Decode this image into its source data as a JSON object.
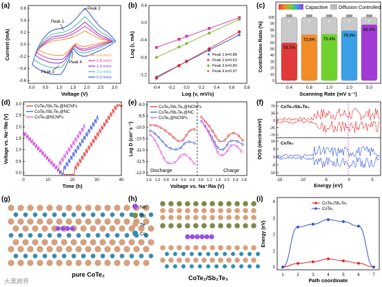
{
  "watermark": "大黑跨界",
  "panels": {
    "a": {
      "label": "(a)",
      "xlabel": "Voltage (V)",
      "ylabel": "Current (mA)",
      "xticks": [
        "0.0",
        "0.5",
        "1.0",
        "1.5",
        "2.0",
        "2.5",
        "3.0"
      ],
      "yticks": [
        "0.6",
        "0.4",
        "0.2",
        "0.0",
        "-0.2",
        "-0.4",
        "-0.6"
      ],
      "peaks": [
        "Peak 1",
        "Peak 2",
        "Peak 3",
        "Peak 4"
      ],
      "legend": [
        "0.4 mV/s",
        "0.8 mV/s",
        "1.0 mV/s",
        "2.0 mV/s",
        "5.0 mV/s"
      ]
    },
    "b": {
      "label": "(b)",
      "xlabel": "Log (v, mV/s)",
      "ylabel": "Log (i, mA)",
      "xticks": [
        "-0.4",
        "-0.2",
        "0.0",
        "0.2",
        "0.4",
        "0.6",
        "0.8"
      ],
      "yticks": [
        "0.4",
        "0.0",
        "-0.4",
        "-0.8",
        "-1.2"
      ],
      "legend": [
        "Peak 1 b=0.88",
        "Peak 2 b=0.63",
        "Peak 3 b=0.80",
        "Peak 4 b=0.97"
      ]
    },
    "c": {
      "label": "(c)",
      "legend_capacitive": "Capacitive",
      "legend_diffusion": "Diffusion Controlled",
      "xlabel": "Scanning Rate (mV s⁻¹)",
      "ylabel": "Contribution Ratio (%)",
      "categories": [
        "0.4",
        "0.8",
        "1.0",
        "2.0",
        "5.0"
      ],
      "percents": [
        "59.7%",
        "72.5%",
        "73.4%",
        "79.0%",
        "88.3%"
      ],
      "yticks": [
        "100",
        "90",
        "80",
        "70",
        "60",
        "50",
        "40",
        "30",
        "20",
        "10",
        "0"
      ]
    },
    "d": {
      "label": "(d)",
      "xlabel": "Time (h)",
      "ylabel": "Voltage vs. Na⁺/Na (V)",
      "xticks": [
        "0",
        "10",
        "20",
        "30",
        "40"
      ],
      "yticks": [
        "0.0",
        "0.5",
        "1.0",
        "1.5",
        "2.0",
        "2.5",
        "3.0"
      ],
      "legend": [
        "CoTe₂/Sb₂Te₃@NCNFs",
        "CoTe₂/Sb₂Te₃@NC",
        "CoTe₂@NCNFs"
      ]
    },
    "e": {
      "label": "(e)",
      "xlabel": "Voltage vs. Na⁺/Na (V)",
      "ylabel": "Log D (cm² s⁻¹)",
      "xticks": [
        "1.6",
        "1.2",
        "0.8",
        "0.4",
        "0.0",
        "0.4",
        "0.8",
        "1.2",
        "1.6",
        "2.0",
        "2.4",
        "2.8"
      ],
      "yticks": [
        "-9.0",
        "-9.5",
        "-10.0",
        "-10.5",
        "-11.0",
        "-11.5",
        "-12.0"
      ],
      "legend": [
        "CoTe₂/Sb₂Te₃@NCNFs",
        "CoTe₂/Sb₂Te₃@NC",
        "CoTe₂@NCNFs"
      ],
      "discharge": "Discharge",
      "charge": "Charge"
    },
    "f": {
      "label": "(f)",
      "xlabel": "Energy (eV)",
      "ylabel": "DOS (electron/eV)",
      "xticks": [
        "-15",
        "-10",
        "-5",
        "0",
        "5"
      ],
      "top_title": "CoTe₂/Sb₂Te₃",
      "bottom_title": "CoTe₂",
      "yticks_top": [
        "70",
        "35",
        "0",
        "-35",
        "-70"
      ],
      "yticks_bottom": [
        "16",
        "8",
        "0",
        "-8",
        "-16"
      ]
    },
    "g": {
      "label": "(g)",
      "caption": "pure CoTe₂"
    },
    "h": {
      "label": "(h)",
      "caption": "CoTe₂/Sb₂Te₃",
      "legend": [
        "Na⁺",
        "Sb",
        "Te",
        "Co"
      ]
    },
    "i": {
      "label": "(i)",
      "xlabel": "Path coordinate",
      "ylabel": "Energy (eV)",
      "xticks": [
        "1",
        "2",
        "3",
        "4",
        "5",
        "6",
        "7"
      ],
      "yticks": [
        "0",
        "1",
        "2",
        "3",
        "4"
      ],
      "legend": [
        "CoTe₂/Sb₂Te₃",
        "CoTe₂"
      ]
    }
  },
  "chart_data": [
    {
      "panel": "b",
      "type": "scatter",
      "xlabel": "Log (v, mV/s)",
      "ylabel": "Log (i, mA)",
      "xlim": [
        -0.5,
        0.8
      ],
      "ylim": [
        -1.4,
        0.4
      ],
      "x": [
        -0.4,
        -0.1,
        0.0,
        0.3,
        0.7
      ],
      "series": [
        {
          "name": "Peak 1 b=0.88",
          "color": "#2d4fd8",
          "values": [
            -1.25,
            -0.99,
            -0.9,
            -0.64,
            -0.28
          ]
        },
        {
          "name": "Peak 2 b=0.63",
          "color": "#e0309c",
          "values": [
            -0.57,
            -0.38,
            -0.31,
            -0.13,
            0.12
          ]
        },
        {
          "name": "Peak 3 b=0.80",
          "color": "#7db82b",
          "values": [
            -0.8,
            -0.56,
            -0.48,
            -0.24,
            0.08
          ]
        },
        {
          "name": "Peak 4 b=0.97",
          "color": "#e02424",
          "values": [
            -1.28,
            -0.99,
            -0.89,
            -0.6,
            -0.21
          ]
        }
      ]
    },
    {
      "panel": "c",
      "type": "bar",
      "categories": [
        "0.4",
        "0.8",
        "1.0",
        "2.0",
        "5.0"
      ],
      "values": [
        59.7,
        72.5,
        73.4,
        79.0,
        88.3
      ],
      "ylim": [
        0,
        100
      ],
      "colors": [
        "#e23a3a",
        "#f28c28",
        "#6fd12e",
        "#3b9fe6",
        "#a23bd6"
      ]
    },
    {
      "panel": "i",
      "type": "line",
      "x": [
        1,
        2,
        3,
        4,
        5,
        6,
        7
      ],
      "xlabel": "Path coordinate",
      "ylabel": "Energy (eV)",
      "ylim": [
        0,
        4
      ],
      "series": [
        {
          "name": "CoTe₂/Sb₂Te₃",
          "color": "#e02424",
          "values": [
            0.0,
            0.22,
            0.32,
            0.5,
            0.38,
            0.23,
            0.0
          ]
        },
        {
          "name": "CoTe₂",
          "color": "#2d4fd8",
          "values": [
            0.0,
            2.45,
            2.62,
            2.9,
            2.78,
            2.5,
            0.0
          ]
        }
      ]
    }
  ]
}
